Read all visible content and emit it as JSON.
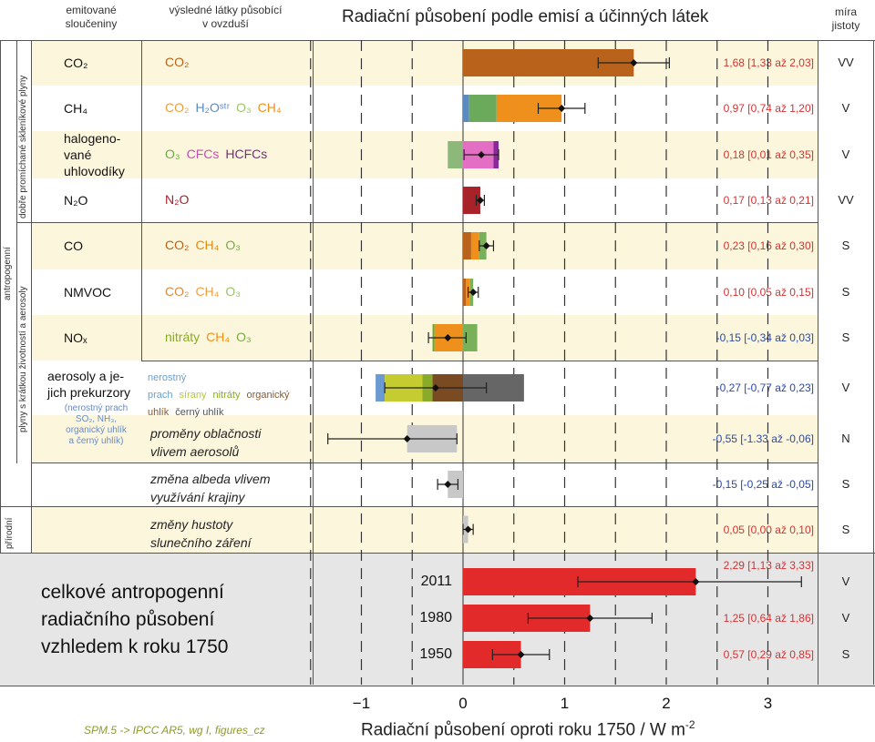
{
  "header": {
    "col_emitted_1": "emitované",
    "col_emitted_2": "sloučeniny",
    "col_species_1": "výsledné látky působící",
    "col_species_2": "v ovzduší",
    "title": "Radiační působení podle emisí a účinných látek",
    "col_conf_1": "míra",
    "col_conf_2": "jistoty"
  },
  "groups": {
    "anthropogenic": "antropogenní",
    "ghg": "dobře promíchané skleníkové plyny",
    "short_lived": "plyny s krátkou životností a aerosoly",
    "natural": "přírodní"
  },
  "rows": [
    {
      "emitted": "CO₂",
      "species": [
        {
          "t": "CO₂",
          "c": "#b8621b"
        }
      ],
      "value": "1,68 [1,33 až 2,03]",
      "conf": "VV"
    },
    {
      "emitted": "CH₄",
      "species": [
        {
          "t": "CO₂",
          "c": "#e8a040"
        },
        {
          "t": "H₂Oˢᵗʳ",
          "c": "#5b8ac0"
        },
        {
          "t": "O₃",
          "c": "#9cc26a"
        },
        {
          "t": "CH₄",
          "c": "#f0901c"
        }
      ],
      "value": "0,97 [0,74 až 1,20]",
      "conf": "V"
    },
    {
      "emitted": "halogeno-\nvané\nuhlovodíky",
      "species": [
        {
          "t": "O₃",
          "c": "#6aaa4a"
        },
        {
          "t": "CFCs",
          "c": "#c64fb3"
        },
        {
          "t": "HCFCs",
          "c": "#7a2a8a"
        }
      ],
      "value": "0,18 [0,01 až 0,35]",
      "conf": "V"
    },
    {
      "emitted": "N₂O",
      "species": [
        {
          "t": "N₂O",
          "c": "#a8222a"
        }
      ],
      "value": "0,17 [0,13 až 0,21]",
      "conf": "VV"
    },
    {
      "emitted": "CO",
      "species": [
        {
          "t": "CO₂",
          "c": "#b8621b"
        },
        {
          "t": "CH₄",
          "c": "#e08a10"
        },
        {
          "t": "O₃",
          "c": "#7aa84a"
        }
      ],
      "value": "0,23 [0,16 až 0,30]",
      "conf": "S"
    },
    {
      "emitted": "NMVOC",
      "species": [
        {
          "t": "CO₂",
          "c": "#d88a40"
        },
        {
          "t": "CH₄",
          "c": "#f0a040"
        },
        {
          "t": "O₃",
          "c": "#9cc26a"
        }
      ],
      "value": "0,10 [0,05 až 0,15]",
      "conf": "S"
    },
    {
      "emitted": "NOₓ",
      "species": [
        {
          "t": "nitráty",
          "c": "#8aaa2a"
        },
        {
          "t": "CH₄",
          "c": "#f09018"
        },
        {
          "t": "O₃",
          "c": "#7aa84a"
        }
      ],
      "value": "-0,15 [-0,34 až 0,03]",
      "conf": "S"
    },
    {
      "emitted": "aerosoly a je-\njich prekurzory",
      "emitted_sub": "(nerostný prach\nSO₂, NH₃,\norganický uhlík\na černý uhlík)",
      "species": [
        {
          "t": "nerostný prach",
          "c": "#6aa0d0"
        },
        {
          "t": "sírany",
          "c": "#b5c83a"
        },
        {
          "t": "nitráty",
          "c": "#8aaa2a"
        },
        {
          "t": "organický uhlík",
          "c": "#8a5a2a"
        },
        {
          "t": "černý uhlík",
          "c": "#555555"
        }
      ],
      "value": "-0,27 [-0,77 až 0,23]",
      "conf": "V"
    },
    {
      "emitted": "",
      "species": [
        {
          "t": "proměny oblačnosti\nvlivem aerosolů",
          "c": "#222222"
        }
      ],
      "value": "-0,55 [-1.33 až -0,06]",
      "conf": "N"
    },
    {
      "emitted": "",
      "species": [
        {
          "t": "změna albeda vlivem\nvyužívání krajiny",
          "c": "#222222"
        }
      ],
      "value": "-0,15 [-0,25 až -0,05]",
      "conf": "S"
    },
    {
      "emitted": "",
      "species": [
        {
          "t": "změny hustoty\nslunečního záření",
          "c": "#222222"
        }
      ],
      "value": "0,05 [0,00 až 0,10]",
      "conf": "S"
    }
  ],
  "total": {
    "label": "celkové antropogenní\nradiačního působení\nvzhledem k roku 1750",
    "rows": [
      {
        "year": "2011",
        "value": "2,29 [1,13 až 3,33]",
        "conf": "V"
      },
      {
        "year": "1980",
        "value": "1,25 [0,64 až 1,86]",
        "conf": "V"
      },
      {
        "year": "1950",
        "value": "0,57 [0,29 až 0,85]",
        "conf": "S"
      }
    ]
  },
  "footer": "SPM.5 -> IPCC AR5, wg I, figures_cz",
  "chart_data": {
    "type": "bar",
    "orientation": "horizontal-stacked",
    "xlabel": "Radiační působení oproti roku 1750 / W m",
    "xlabel_sup": "-2",
    "xlim": [
      -1.45,
      3.5
    ],
    "xticks": [
      "−1",
      "0",
      "1",
      "2",
      "3"
    ],
    "xtick_values": [
      -1,
      0,
      1,
      2,
      3
    ],
    "gridlines_dashed": [
      -1.5,
      -1,
      -0.5,
      0.5,
      1,
      1.5,
      2,
      2.5,
      3
    ],
    "bars": [
      {
        "label": "CO₂",
        "segments": [
          {
            "from": 0,
            "to": 1.68,
            "color": "#b8621b"
          }
        ],
        "best": 1.68,
        "low": 1.33,
        "high": 2.03
      },
      {
        "label": "CH₄",
        "segments": [
          {
            "from": 0,
            "to": 0.06,
            "color": "#5b8ac0"
          },
          {
            "from": 0.06,
            "to": 0.33,
            "color": "#6aaa5a"
          },
          {
            "from": 0.33,
            "to": 0.97,
            "color": "#f0901c"
          }
        ],
        "best": 0.97,
        "low": 0.74,
        "high": 1.2
      },
      {
        "label": "halogenované uhlovodíky",
        "segments": [
          {
            "from": -0.15,
            "to": 0,
            "color": "#8cb87a"
          },
          {
            "from": 0,
            "to": 0.3,
            "color": "#e36fc4"
          },
          {
            "from": 0.3,
            "to": 0.35,
            "color": "#8a2a9a"
          }
        ],
        "best": 0.18,
        "low": 0.01,
        "high": 0.35
      },
      {
        "label": "N₂O",
        "segments": [
          {
            "from": 0,
            "to": 0.17,
            "color": "#a8222a"
          }
        ],
        "best": 0.17,
        "low": 0.13,
        "high": 0.21
      },
      {
        "label": "CO",
        "segments": [
          {
            "from": 0,
            "to": 0.08,
            "color": "#b8621b"
          },
          {
            "from": 0.08,
            "to": 0.16,
            "color": "#f0901c"
          },
          {
            "from": 0.16,
            "to": 0.23,
            "color": "#7ab05a"
          }
        ],
        "best": 0.23,
        "low": 0.16,
        "high": 0.3
      },
      {
        "label": "NMVOC",
        "segments": [
          {
            "from": 0,
            "to": 0.03,
            "color": "#b8621b"
          },
          {
            "from": 0.03,
            "to": 0.07,
            "color": "#f0901c"
          },
          {
            "from": 0.07,
            "to": 0.1,
            "color": "#7ab05a"
          }
        ],
        "best": 0.1,
        "low": 0.05,
        "high": 0.15
      },
      {
        "label": "NOₓ",
        "segments": [
          {
            "from": -0.3,
            "to": -0.28,
            "color": "#6aaa2a"
          },
          {
            "from": -0.28,
            "to": 0,
            "color": "#f0901c"
          },
          {
            "from": 0,
            "to": 0.14,
            "color": "#7ab05a"
          }
        ],
        "best": -0.15,
        "low": -0.34,
        "high": 0.03
      },
      {
        "label": "aerosoly a jejich prekurzory",
        "segments": [
          {
            "from": -0.86,
            "to": -0.77,
            "color": "#6a9ad0"
          },
          {
            "from": -0.77,
            "to": -0.4,
            "color": "#c4cc30"
          },
          {
            "from": -0.4,
            "to": -0.3,
            "color": "#8aaa2a"
          },
          {
            "from": -0.3,
            "to": 0,
            "color": "#7a4a22"
          },
          {
            "from": 0,
            "to": 0.6,
            "color": "#666666"
          }
        ],
        "best": -0.27,
        "low": -0.77,
        "high": 0.23
      },
      {
        "label": "proměny oblačnosti vlivem aerosolů",
        "segments": [
          {
            "from": -0.55,
            "to": -0.06,
            "color": "#c8c8c8"
          }
        ],
        "best": -0.55,
        "low": -1.33,
        "high": -0.06
      },
      {
        "label": "změna albeda vlivem využívání krajiny",
        "segments": [
          {
            "from": -0.15,
            "to": 0,
            "color": "#c8c8c8"
          }
        ],
        "best": -0.15,
        "low": -0.25,
        "high": -0.05
      },
      {
        "label": "změny hustoty slunečního záření",
        "segments": [
          {
            "from": 0,
            "to": 0.05,
            "color": "#c8c8c8"
          }
        ],
        "best": 0.05,
        "low": 0.0,
        "high": 0.1
      },
      {
        "label": "2011",
        "segments": [
          {
            "from": 0,
            "to": 2.29,
            "color": "#e32a2a"
          }
        ],
        "best": 2.29,
        "low": 1.13,
        "high": 3.33
      },
      {
        "label": "1980",
        "segments": [
          {
            "from": 0,
            "to": 1.25,
            "color": "#e32a2a"
          }
        ],
        "best": 1.25,
        "low": 0.64,
        "high": 1.86
      },
      {
        "label": "1950",
        "segments": [
          {
            "from": 0,
            "to": 0.57,
            "color": "#e32a2a"
          }
        ],
        "best": 0.57,
        "low": 0.29,
        "high": 0.85
      }
    ]
  }
}
